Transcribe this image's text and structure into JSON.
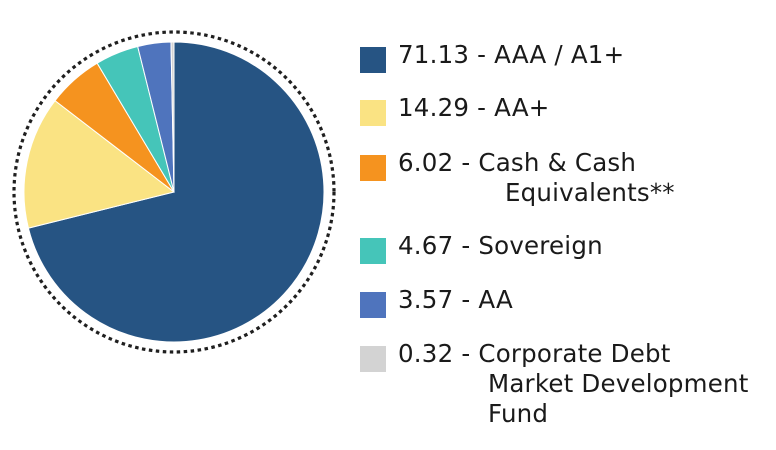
{
  "chart_data": {
    "type": "pie",
    "title": "",
    "border": "dotted-circle",
    "slices": [
      {
        "value": 71.13,
        "label": "AAA / A1+",
        "color": "#265483"
      },
      {
        "value": 14.29,
        "label": "AA+",
        "color": "#FAE383"
      },
      {
        "value": 6.02,
        "label": "Cash & Cash Equivalents**",
        "color": "#F5931F"
      },
      {
        "value": 4.67,
        "label": "Sovereign",
        "color": "#45C5B9"
      },
      {
        "value": 3.57,
        "label": "AA",
        "color": "#4F74BD"
      },
      {
        "value": 0.32,
        "label": "Corporate Debt Market Development Fund",
        "color": "#D3D3D3"
      }
    ],
    "legend": {
      "position": "right",
      "entries": [
        {
          "value_text": "71.13",
          "lines": [
            "AAA / A1+"
          ]
        },
        {
          "value_text": "14.29",
          "lines": [
            "AA+"
          ]
        },
        {
          "value_text": "6.02",
          "lines": [
            "Cash & Cash",
            "Equivalents**"
          ]
        },
        {
          "value_text": "4.67",
          "lines": [
            "Sovereign"
          ]
        },
        {
          "value_text": "3.57",
          "lines": [
            "AA"
          ]
        },
        {
          "value_text": "0.32",
          "lines": [
            "Corporate Debt",
            "Market Development",
            "Fund"
          ]
        }
      ]
    }
  }
}
